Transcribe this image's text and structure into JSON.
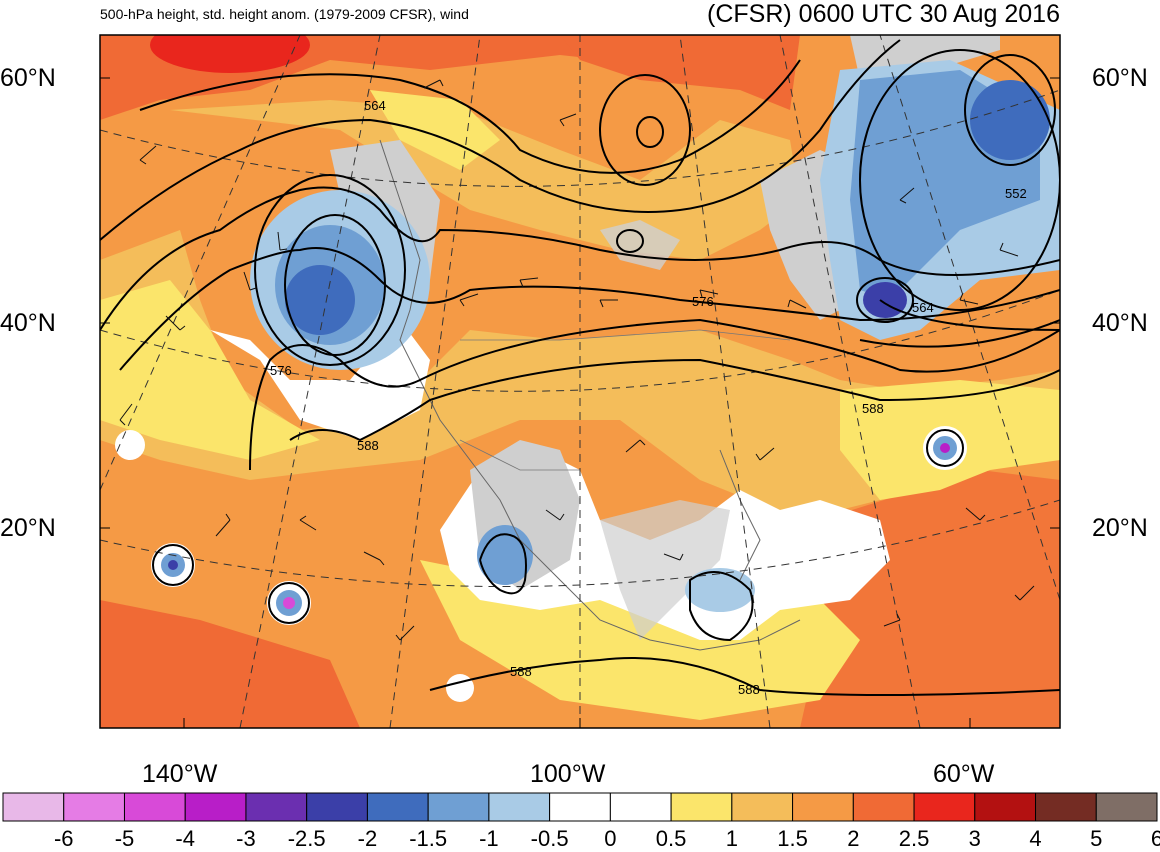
{
  "header": {
    "title_left": "500-hPa height, std. height anom. (1979-2009 CFSR), wind",
    "title_right": "(CFSR) 0600 UTC 30 Aug 2016"
  },
  "map": {
    "lat_labels": [
      "60°N",
      "40°N",
      "20°N"
    ],
    "lon_labels": [
      "140°W",
      "100°W",
      "60°W"
    ],
    "contour_labels": [
      "564",
      "576",
      "588",
      "552",
      "564",
      "576",
      "588",
      "588",
      "588"
    ],
    "colors": {
      "warm_bg": "#f59a45",
      "warm_mid": "#f4bd5a",
      "warm_light": "#fbe56b",
      "hot": "#f06a35",
      "red": "#e9261d",
      "neutral_white": "#ffffff",
      "neutral_gray": "#cfcfcf",
      "cool_light": "#a9cbe6",
      "cool_mid": "#6f9fd3",
      "cool_dark": "#3f6cbd",
      "cool_deep": "#3b3fa8"
    }
  },
  "colorbar": {
    "labels": [
      "-6",
      "-5",
      "-4",
      "-3",
      "-2.5",
      "-2",
      "-1.5",
      "-1",
      "-0.5",
      "0",
      "0.5",
      "1",
      "1.5",
      "2",
      "2.5",
      "3",
      "4",
      "5",
      "6"
    ],
    "colors": [
      "#e8b8e8",
      "#e57ce5",
      "#d84ad8",
      "#b81ec8",
      "#6b2fb0",
      "#3b3fa8",
      "#3f6cbd",
      "#6f9fd3",
      "#a9cbe6",
      "#ffffff",
      "#ffffff",
      "#fbe56b",
      "#f4bd5a",
      "#f59a45",
      "#f06a35",
      "#e9261d",
      "#b31111",
      "#742c23",
      "#7f6e66"
    ]
  }
}
